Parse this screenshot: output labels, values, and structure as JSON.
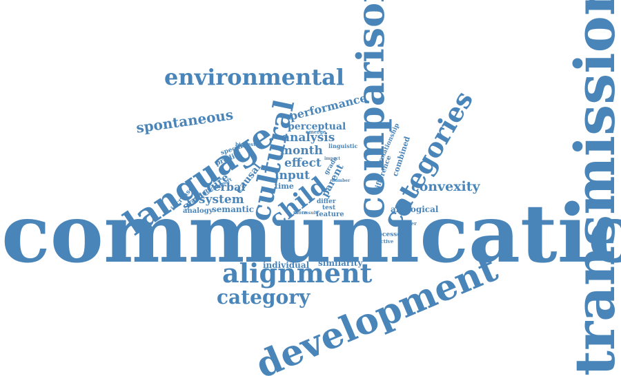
{
  "color": "#4a85b9",
  "words": [
    {
      "text": "communication",
      "weight": 100
    },
    {
      "text": "transmission",
      "weight": 78
    },
    {
      "text": "comparison",
      "weight": 52
    },
    {
      "text": "development",
      "weight": 42
    },
    {
      "text": "language",
      "weight": 46
    },
    {
      "text": "cultural",
      "weight": 36
    },
    {
      "text": "categories",
      "weight": 34
    },
    {
      "text": "alignment",
      "weight": 33
    },
    {
      "text": "environmental",
      "weight": 30
    },
    {
      "text": "category",
      "weight": 25
    },
    {
      "text": "child",
      "weight": 30
    },
    {
      "text": "convexity",
      "weight": 18
    },
    {
      "text": "spontaneous",
      "weight": 17
    },
    {
      "text": "performance",
      "weight": 15
    },
    {
      "text": "perceptual",
      "weight": 13
    },
    {
      "text": "analysis",
      "weight": 15
    },
    {
      "text": "month",
      "weight": 15
    },
    {
      "text": "effect",
      "weight": 15
    },
    {
      "text": "input",
      "weight": 15
    },
    {
      "text": "verbal",
      "weight": 15
    },
    {
      "text": "system",
      "weight": 15
    },
    {
      "text": "structure",
      "weight": 14
    },
    {
      "text": "causal",
      "weight": 13
    },
    {
      "text": "semantic",
      "weight": 11
    },
    {
      "text": "analogy",
      "weight": 9
    },
    {
      "text": "parent",
      "weight": 12
    },
    {
      "text": "grade",
      "weight": 8
    },
    {
      "text": "predict",
      "weight": 9
    },
    {
      "text": "specific",
      "weight": 8
    },
    {
      "text": "highest",
      "weight": 6
    },
    {
      "text": "increase",
      "weight": 8
    },
    {
      "text": "varying",
      "weight": 8
    },
    {
      "text": "support",
      "weight": 6
    },
    {
      "text": "time",
      "weight": 10
    },
    {
      "text": "emerge",
      "weight": 6
    },
    {
      "text": "linguistic",
      "weight": 7
    },
    {
      "text": "impact",
      "weight": 5
    },
    {
      "text": "number",
      "weight": 5
    },
    {
      "text": "difference",
      "weight": 8
    },
    {
      "text": "relationship",
      "weight": 7
    },
    {
      "text": "combined",
      "weight": 8
    },
    {
      "text": "analogical",
      "weight": 11
    },
    {
      "text": "speaker",
      "weight": 6
    },
    {
      "text": "processes",
      "weight": 7
    },
    {
      "text": "effective",
      "weight": 6
    },
    {
      "text": "test",
      "weight": 8
    },
    {
      "text": "differ",
      "weight": 8
    },
    {
      "text": "feature",
      "weight": 8
    },
    {
      "text": "more",
      "weight": 6
    },
    {
      "text": "result",
      "weight": 5
    },
    {
      "text": "individual",
      "weight": 11
    },
    {
      "text": "similarity",
      "weight": 11
    }
  ]
}
